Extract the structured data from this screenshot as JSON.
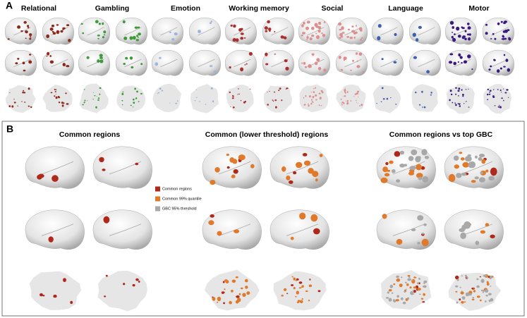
{
  "panel_a": {
    "label": "A",
    "tasks": [
      {
        "name": "Relational",
        "color": "#8b2a1a"
      },
      {
        "name": "Gambling",
        "color": "#3e9a3a"
      },
      {
        "name": "Emotion",
        "color": "#9fb6dc"
      },
      {
        "name": "Working memory",
        "color": "#a83030"
      },
      {
        "name": "Social",
        "color": "#de8e8e"
      },
      {
        "name": "Language",
        "color": "#3f5fb0"
      },
      {
        "name": "Motor",
        "color": "#3a1a80"
      }
    ]
  },
  "panel_b": {
    "label": "B",
    "columns": [
      "Common regions",
      "Common (lower threshold) regions",
      "Common regions vs top GBC"
    ],
    "legend": [
      {
        "name": "Common regions",
        "color": "#b0281a"
      },
      {
        "name": "Common 99% quantile",
        "color": "#e07a2a"
      },
      {
        "name": "GBC 95% threshold",
        "color": "#a8a8a8"
      }
    ]
  }
}
